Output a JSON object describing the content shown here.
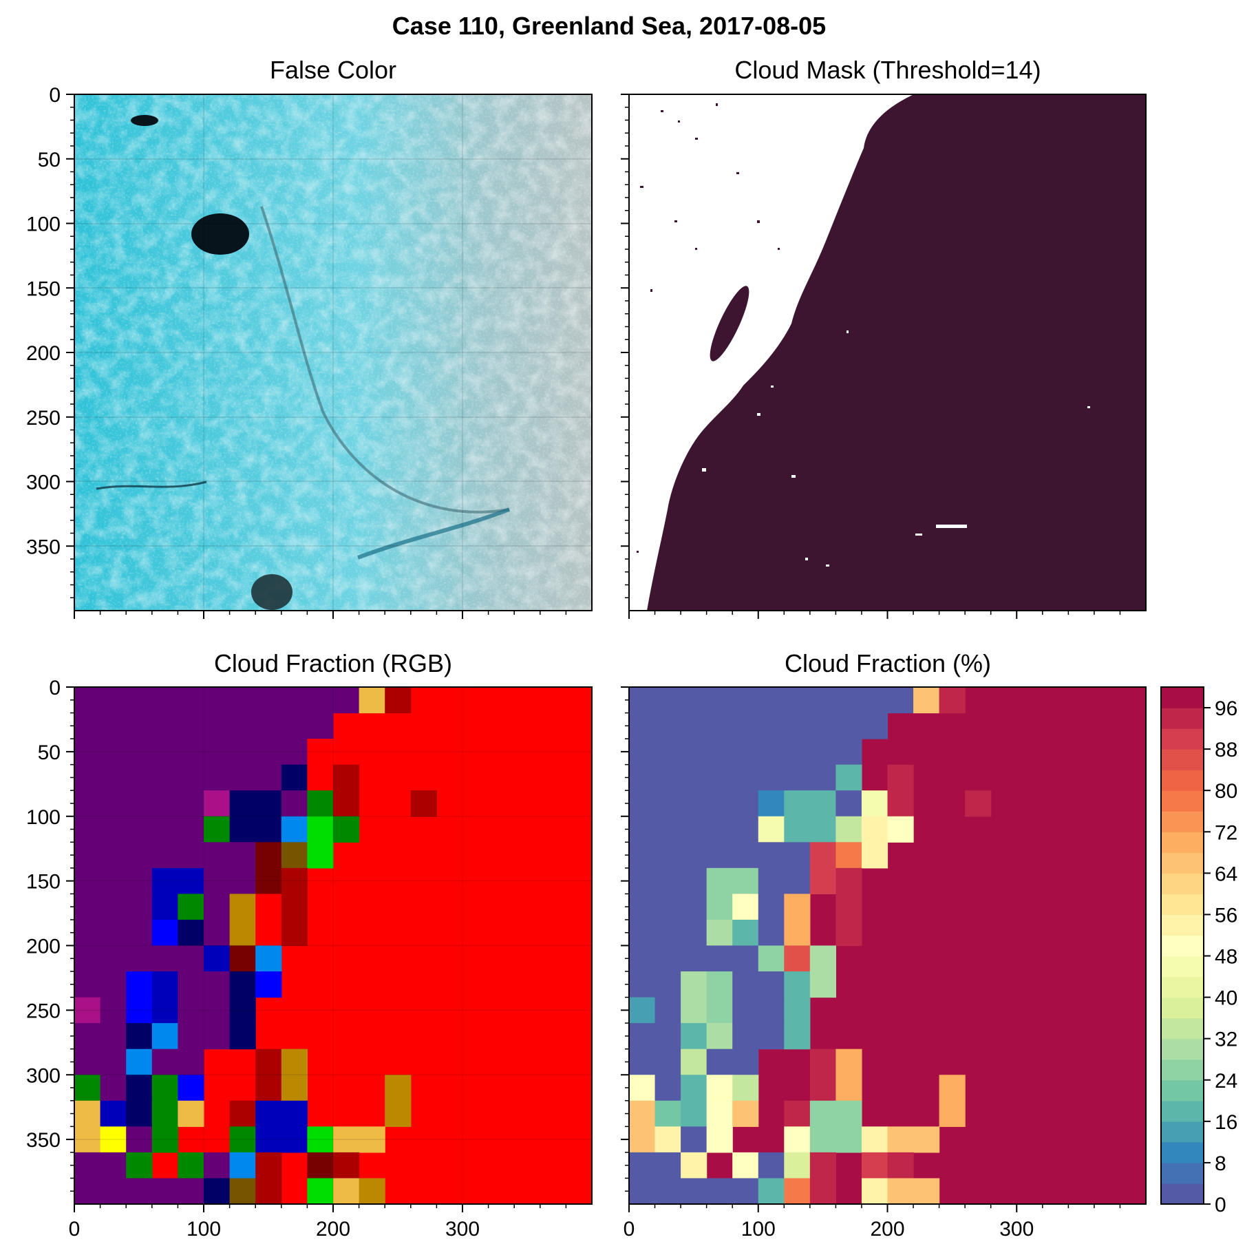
{
  "figure": {
    "title": "Case 110, Greenland Sea, 2017-08-05"
  },
  "chart_data": [
    {
      "type": "image",
      "title": "False Color",
      "xlim": [
        0,
        400
      ],
      "ylim": [
        400,
        0
      ],
      "yticks": [
        0,
        50,
        100,
        150,
        200,
        250,
        300,
        350
      ],
      "xticks": [],
      "grid": true
    },
    {
      "type": "heatmap",
      "title": "Cloud Mask (Threshold=14)",
      "xlim": [
        0,
        400
      ],
      "ylim": [
        400,
        0
      ],
      "yticks": [],
      "xticks": [],
      "values": [
        0,
        1
      ],
      "colors": {
        "0": "#ffffff",
        "1": "#3e1530"
      }
    },
    {
      "type": "heatmap",
      "title": "Cloud Fraction (RGB)",
      "xlim": [
        0,
        400
      ],
      "ylim": [
        400,
        0
      ],
      "yticks": [
        0,
        50,
        100,
        150,
        200,
        250,
        300,
        350
      ],
      "xticks": [
        0,
        100,
        200,
        300
      ],
      "grid_cell_size": 20,
      "background_color": "#ff0000",
      "palette": {
        "P": "#660077",
        "N": "#000066",
        "B": "#0000bb",
        "L": "#0000ff",
        "C": "#0088ee",
        "G": "#008800",
        "A": "#00dd00",
        "R": "#ff0000",
        "D": "#aa0000",
        "M": "#770000",
        "O": "#bb8800",
        "Y": "#eebb44",
        "W": "#ffff00",
        "K": "#aa1188",
        "V": "#775500"
      },
      "cells": [
        [
          0,
          0,
          11,
          "P"
        ],
        [
          0,
          11,
          1,
          "Y"
        ],
        [
          0,
          12,
          1,
          "D"
        ],
        [
          1,
          0,
          10,
          "P"
        ],
        [
          2,
          0,
          9,
          "P"
        ],
        [
          2,
          9,
          1,
          "R"
        ],
        [
          3,
          0,
          8,
          "P"
        ],
        [
          3,
          8,
          1,
          "N"
        ],
        [
          3,
          9,
          1,
          "R"
        ],
        [
          3,
          10,
          1,
          "D"
        ],
        [
          4,
          0,
          5,
          "P"
        ],
        [
          4,
          5,
          1,
          "K"
        ],
        [
          4,
          6,
          2,
          "N"
        ],
        [
          4,
          8,
          1,
          "P"
        ],
        [
          4,
          9,
          1,
          "G"
        ],
        [
          4,
          10,
          1,
          "D"
        ],
        [
          4,
          13,
          1,
          "D"
        ],
        [
          5,
          0,
          5,
          "P"
        ],
        [
          5,
          5,
          1,
          "G"
        ],
        [
          5,
          6,
          2,
          "N"
        ],
        [
          5,
          8,
          1,
          "C"
        ],
        [
          5,
          9,
          1,
          "A"
        ],
        [
          5,
          10,
          1,
          "G"
        ],
        [
          6,
          0,
          7,
          "P"
        ],
        [
          6,
          7,
          1,
          "M"
        ],
        [
          6,
          8,
          1,
          "V"
        ],
        [
          6,
          9,
          1,
          "A"
        ],
        [
          7,
          0,
          3,
          "P"
        ],
        [
          7,
          3,
          2,
          "B"
        ],
        [
          7,
          5,
          2,
          "P"
        ],
        [
          7,
          7,
          1,
          "M"
        ],
        [
          7,
          8,
          1,
          "D"
        ],
        [
          8,
          0,
          3,
          "P"
        ],
        [
          8,
          3,
          1,
          "B"
        ],
        [
          8,
          4,
          1,
          "G"
        ],
        [
          8,
          5,
          1,
          "P"
        ],
        [
          8,
          6,
          1,
          "O"
        ],
        [
          8,
          7,
          1,
          "R"
        ],
        [
          8,
          8,
          1,
          "D"
        ],
        [
          9,
          0,
          3,
          "P"
        ],
        [
          9,
          3,
          1,
          "L"
        ],
        [
          9,
          4,
          1,
          "N"
        ],
        [
          9,
          5,
          1,
          "P"
        ],
        [
          9,
          6,
          1,
          "O"
        ],
        [
          9,
          7,
          1,
          "R"
        ],
        [
          9,
          8,
          1,
          "D"
        ],
        [
          10,
          0,
          5,
          "P"
        ],
        [
          10,
          5,
          1,
          "B"
        ],
        [
          10,
          6,
          1,
          "M"
        ],
        [
          10,
          7,
          1,
          "C"
        ],
        [
          11,
          0,
          2,
          "P"
        ],
        [
          11,
          2,
          1,
          "L"
        ],
        [
          11,
          3,
          1,
          "B"
        ],
        [
          11,
          4,
          2,
          "P"
        ],
        [
          11,
          6,
          1,
          "N"
        ],
        [
          11,
          7,
          1,
          "L"
        ],
        [
          12,
          0,
          1,
          "K"
        ],
        [
          12,
          1,
          1,
          "P"
        ],
        [
          12,
          2,
          1,
          "L"
        ],
        [
          12,
          3,
          1,
          "B"
        ],
        [
          12,
          4,
          2,
          "P"
        ],
        [
          12,
          6,
          1,
          "N"
        ],
        [
          13,
          0,
          2,
          "P"
        ],
        [
          13,
          2,
          1,
          "N"
        ],
        [
          13,
          3,
          1,
          "C"
        ],
        [
          13,
          4,
          2,
          "P"
        ],
        [
          13,
          6,
          1,
          "N"
        ],
        [
          14,
          0,
          2,
          "P"
        ],
        [
          14,
          2,
          1,
          "C"
        ],
        [
          14,
          3,
          2,
          "P"
        ],
        [
          14,
          7,
          1,
          "D"
        ],
        [
          14,
          8,
          1,
          "O"
        ],
        [
          15,
          0,
          1,
          "G"
        ],
        [
          15,
          1,
          1,
          "P"
        ],
        [
          15,
          2,
          1,
          "N"
        ],
        [
          15,
          3,
          1,
          "G"
        ],
        [
          15,
          4,
          1,
          "L"
        ],
        [
          15,
          7,
          1,
          "D"
        ],
        [
          15,
          8,
          1,
          "O"
        ],
        [
          15,
          12,
          1,
          "O"
        ],
        [
          16,
          0,
          1,
          "Y"
        ],
        [
          16,
          1,
          1,
          "B"
        ],
        [
          16,
          2,
          1,
          "N"
        ],
        [
          16,
          3,
          1,
          "G"
        ],
        [
          16,
          4,
          1,
          "Y"
        ],
        [
          16,
          6,
          1,
          "D"
        ],
        [
          16,
          7,
          2,
          "B"
        ],
        [
          16,
          12,
          1,
          "O"
        ],
        [
          17,
          0,
          1,
          "Y"
        ],
        [
          17,
          1,
          1,
          "W"
        ],
        [
          17,
          2,
          1,
          "P"
        ],
        [
          17,
          3,
          1,
          "G"
        ],
        [
          17,
          6,
          1,
          "G"
        ],
        [
          17,
          7,
          2,
          "B"
        ],
        [
          17,
          9,
          1,
          "A"
        ],
        [
          17,
          10,
          2,
          "Y"
        ],
        [
          18,
          0,
          2,
          "P"
        ],
        [
          18,
          2,
          1,
          "G"
        ],
        [
          18,
          4,
          1,
          "G"
        ],
        [
          18,
          5,
          1,
          "P"
        ],
        [
          18,
          6,
          1,
          "C"
        ],
        [
          18,
          7,
          1,
          "D"
        ],
        [
          18,
          9,
          1,
          "M"
        ],
        [
          18,
          10,
          1,
          "D"
        ],
        [
          19,
          0,
          5,
          "P"
        ],
        [
          19,
          5,
          1,
          "N"
        ],
        [
          19,
          6,
          1,
          "V"
        ],
        [
          19,
          7,
          1,
          "D"
        ],
        [
          19,
          9,
          1,
          "A"
        ],
        [
          19,
          10,
          1,
          "Y"
        ],
        [
          19,
          11,
          1,
          "O"
        ]
      ]
    },
    {
      "type": "heatmap",
      "title": "Cloud Fraction (%)",
      "xlim": [
        0,
        400
      ],
      "ylim": [
        400,
        0
      ],
      "yticks": [],
      "xticks": [
        0,
        100,
        200,
        300
      ],
      "grid_cell_size": 20,
      "background_value": 100,
      "cells": [
        [
          0,
          0,
          11,
          2
        ],
        [
          0,
          11,
          1,
          64
        ],
        [
          0,
          12,
          1,
          92
        ],
        [
          1,
          0,
          10,
          2
        ],
        [
          2,
          0,
          9,
          2
        ],
        [
          3,
          0,
          8,
          2
        ],
        [
          3,
          8,
          1,
          18
        ],
        [
          3,
          10,
          1,
          92
        ],
        [
          4,
          0,
          5,
          2
        ],
        [
          4,
          5,
          1,
          10
        ],
        [
          4,
          6,
          2,
          18
        ],
        [
          4,
          8,
          1,
          2
        ],
        [
          4,
          9,
          1,
          46
        ],
        [
          4,
          10,
          1,
          92
        ],
        [
          4,
          13,
          1,
          92
        ],
        [
          5,
          0,
          5,
          2
        ],
        [
          5,
          5,
          1,
          46
        ],
        [
          5,
          6,
          2,
          18
        ],
        [
          5,
          8,
          1,
          34
        ],
        [
          5,
          9,
          1,
          52
        ],
        [
          5,
          10,
          1,
          48
        ],
        [
          6,
          0,
          7,
          2
        ],
        [
          6,
          7,
          1,
          88
        ],
        [
          6,
          8,
          1,
          76
        ],
        [
          6,
          9,
          1,
          52
        ],
        [
          7,
          0,
          3,
          2
        ],
        [
          7,
          3,
          2,
          26
        ],
        [
          7,
          5,
          2,
          2
        ],
        [
          7,
          7,
          1,
          88
        ],
        [
          7,
          8,
          1,
          92
        ],
        [
          8,
          0,
          3,
          2
        ],
        [
          8,
          3,
          1,
          26
        ],
        [
          8,
          4,
          1,
          48
        ],
        [
          8,
          5,
          1,
          2
        ],
        [
          8,
          6,
          1,
          68
        ],
        [
          8,
          8,
          1,
          92
        ],
        [
          9,
          0,
          3,
          2
        ],
        [
          9,
          3,
          1,
          30
        ],
        [
          9,
          4,
          1,
          16
        ],
        [
          9,
          5,
          1,
          2
        ],
        [
          9,
          6,
          1,
          68
        ],
        [
          9,
          8,
          1,
          92
        ],
        [
          10,
          0,
          5,
          2
        ],
        [
          10,
          5,
          1,
          24
        ],
        [
          10,
          6,
          1,
          86
        ],
        [
          10,
          7,
          1,
          30
        ],
        [
          11,
          0,
          2,
          2
        ],
        [
          11,
          2,
          1,
          30
        ],
        [
          11,
          3,
          1,
          26
        ],
        [
          11,
          4,
          2,
          2
        ],
        [
          11,
          6,
          1,
          16
        ],
        [
          11,
          7,
          1,
          30
        ],
        [
          12,
          0,
          1,
          12
        ],
        [
          12,
          1,
          1,
          2
        ],
        [
          12,
          2,
          1,
          30
        ],
        [
          12,
          3,
          1,
          26
        ],
        [
          12,
          4,
          2,
          2
        ],
        [
          12,
          6,
          1,
          16
        ],
        [
          13,
          0,
          2,
          2
        ],
        [
          13,
          2,
          1,
          16
        ],
        [
          13,
          3,
          1,
          30
        ],
        [
          13,
          4,
          2,
          2
        ],
        [
          13,
          6,
          1,
          16
        ],
        [
          14,
          0,
          2,
          2
        ],
        [
          14,
          2,
          1,
          34
        ],
        [
          14,
          3,
          2,
          2
        ],
        [
          14,
          7,
          1,
          92
        ],
        [
          14,
          8,
          1,
          68
        ],
        [
          15,
          0,
          1,
          50
        ],
        [
          15,
          1,
          1,
          2
        ],
        [
          15,
          2,
          1,
          16
        ],
        [
          15,
          3,
          1,
          50
        ],
        [
          15,
          4,
          1,
          32
        ],
        [
          15,
          7,
          1,
          92
        ],
        [
          15,
          8,
          1,
          68
        ],
        [
          15,
          12,
          1,
          68
        ],
        [
          16,
          0,
          1,
          64
        ],
        [
          16,
          1,
          1,
          22
        ],
        [
          16,
          2,
          1,
          16
        ],
        [
          16,
          3,
          1,
          50
        ],
        [
          16,
          4,
          1,
          64
        ],
        [
          16,
          6,
          1,
          92
        ],
        [
          16,
          7,
          2,
          24
        ],
        [
          16,
          12,
          1,
          68
        ],
        [
          17,
          0,
          1,
          64
        ],
        [
          17,
          1,
          1,
          54
        ],
        [
          17,
          2,
          1,
          2
        ],
        [
          17,
          3,
          1,
          50
        ],
        [
          17,
          6,
          1,
          48
        ],
        [
          17,
          7,
          2,
          24
        ],
        [
          17,
          9,
          1,
          54
        ],
        [
          17,
          10,
          2,
          64
        ],
        [
          18,
          0,
          2,
          2
        ],
        [
          18,
          2,
          1,
          52
        ],
        [
          18,
          4,
          1,
          50
        ],
        [
          18,
          5,
          1,
          2
        ],
        [
          18,
          6,
          1,
          36
        ],
        [
          18,
          7,
          1,
          92
        ],
        [
          18,
          9,
          1,
          88
        ],
        [
          18,
          10,
          1,
          92
        ],
        [
          19,
          0,
          5,
          2
        ],
        [
          19,
          5,
          1,
          16
        ],
        [
          19,
          6,
          1,
          78
        ],
        [
          19,
          7,
          1,
          92
        ],
        [
          19,
          9,
          1,
          52
        ],
        [
          19,
          10,
          1,
          64
        ],
        [
          19,
          11,
          1,
          64
        ]
      ],
      "colorbar": {
        "min": 0,
        "max": 100,
        "levels": 25,
        "ticks": [
          "0",
          "8",
          "16",
          "24",
          "32",
          "40",
          "48",
          "56",
          "64",
          "72",
          "80",
          "88",
          "96"
        ],
        "colormap": "Spectral_r"
      }
    }
  ]
}
